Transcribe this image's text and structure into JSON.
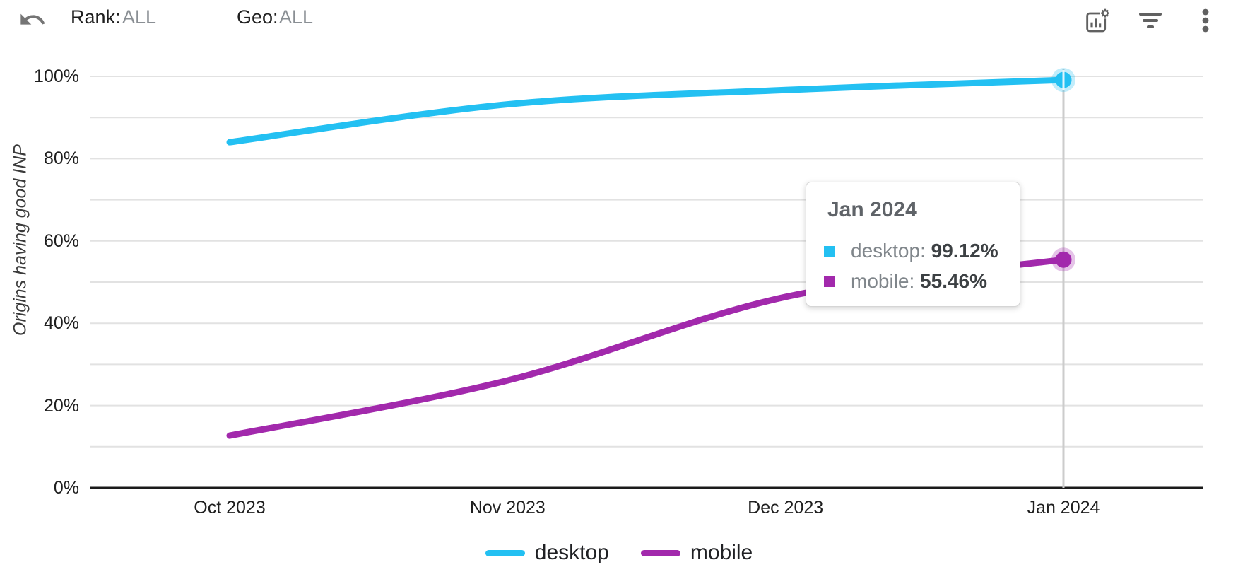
{
  "toolbar": {
    "undo_icon": "undo-arrow",
    "filters": [
      {
        "label": "Rank:",
        "value": "ALL"
      },
      {
        "label": "Geo:",
        "value": "ALL"
      }
    ],
    "right_icons": [
      "chart-settings",
      "filter",
      "more-vertical"
    ]
  },
  "chart_data": {
    "type": "line",
    "x_labels": [
      "Oct 2023",
      "Nov 2023",
      "Dec 2023",
      "Jan 2024"
    ],
    "series": [
      {
        "name": "desktop",
        "color": "#23C0F2",
        "values": [
          84.0,
          93.2,
          96.7,
          99.12
        ]
      },
      {
        "name": "mobile",
        "color": "#A229AC",
        "values": [
          12.7,
          26.1,
          46.4,
          55.46
        ]
      }
    ],
    "ylabel": "Origins having good INP",
    "ylim": [
      0,
      100
    ],
    "grid": "horizontal lines every 10%",
    "ytick_labels": [
      "0%",
      "20%",
      "40%",
      "60%",
      "80%",
      "100%"
    ],
    "legend_position": "bottom",
    "highlight": {
      "x_label": "Jan 2024",
      "index": 3
    }
  },
  "tooltip": {
    "title": "Jan 2024",
    "rows": [
      {
        "label": "desktop: ",
        "value": "99.12%",
        "color": "#23C0F2"
      },
      {
        "label": "mobile: ",
        "value": "55.46%",
        "color": "#A229AC"
      }
    ]
  },
  "legend": {
    "items": [
      {
        "label": "desktop",
        "color": "#23C0F2"
      },
      {
        "label": "mobile",
        "color": "#A229AC"
      }
    ]
  },
  "colors": {
    "desktop": "#23C0F2",
    "mobile": "#A229AC",
    "gridline": "#e2e2e2",
    "axis": "#1b1b1b",
    "crosshair": "#cccccc",
    "icon_gray": "#616161"
  }
}
